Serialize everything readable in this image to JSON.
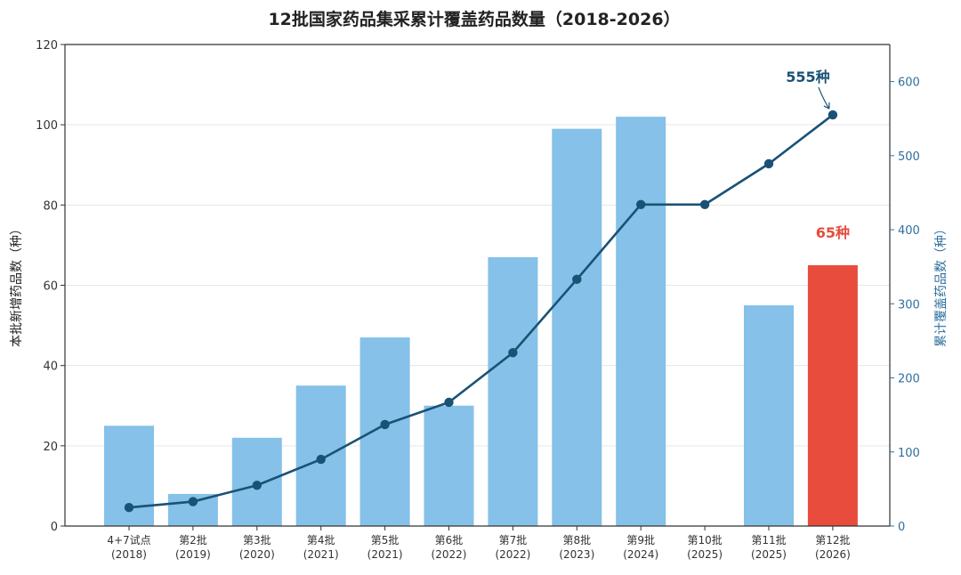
{
  "chart_data": {
    "type": "bar",
    "title": "12批国家药品集采累计覆盖药品数量（2018-2026）",
    "categories": [
      [
        "4+7试点",
        "(2018)"
      ],
      [
        "第2批",
        "(2019)"
      ],
      [
        "第3批",
        "(2020)"
      ],
      [
        "第4批",
        "(2021)"
      ],
      [
        "第5批",
        "(2021)"
      ],
      [
        "第6批",
        "(2022)"
      ],
      [
        "第7批",
        "(2022)"
      ],
      [
        "第8批",
        "(2023)"
      ],
      [
        "第9批",
        "(2024)"
      ],
      [
        "第10批",
        "(2025)"
      ],
      [
        "第11批",
        "(2025)"
      ],
      [
        "第12批",
        "(2026)"
      ]
    ],
    "series": [
      {
        "axis": "left",
        "values": [
          25,
          8,
          22,
          35,
          47,
          30,
          67,
          99,
          102,
          0,
          55,
          65
        ],
        "colors": [
          "#85c1e9",
          "#85c1e9",
          "#85c1e9",
          "#85c1e9",
          "#85c1e9",
          "#85c1e9",
          "#85c1e9",
          "#85c1e9",
          "#85c1e9",
          "#85c1e9",
          "#85c1e9",
          "#e74c3c"
        ]
      },
      {
        "axis": "right",
        "type": "line",
        "color": "#1a5276",
        "values": [
          25,
          33,
          55,
          90,
          137,
          167,
          234,
          333,
          434,
          434,
          489,
          555
        ]
      }
    ],
    "ylabel": "本批新增药品数（种）",
    "ylabel_right": "累计覆盖药品数（种）",
    "ylim": [
      0,
      120
    ],
    "ylim_right": [
      0,
      650
    ],
    "yticks": [
      0,
      20,
      40,
      60,
      80,
      100,
      120
    ],
    "yticks_right": [
      0,
      100,
      200,
      300,
      400,
      500,
      600
    ],
    "grid": "horizontal",
    "annotations": [
      {
        "text": "555种",
        "target": "line-point-11",
        "color": "#1a5276"
      },
      {
        "text": "65种",
        "target": "bar-11",
        "color": "#e74c3c"
      }
    ]
  }
}
